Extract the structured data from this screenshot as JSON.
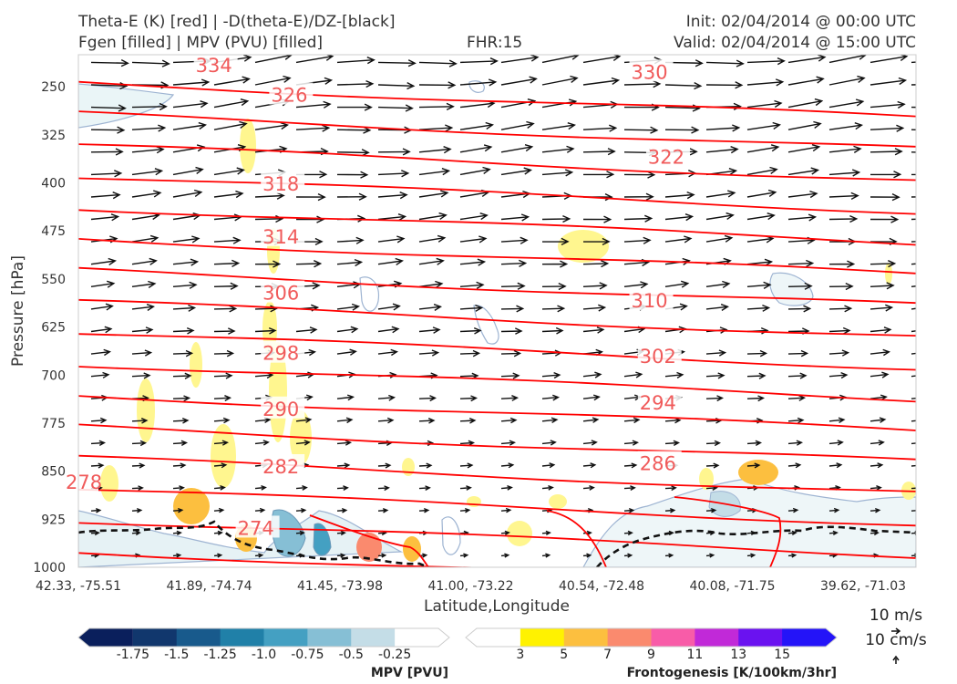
{
  "header": {
    "line1_left": "Theta-E (K) [red] | -D(theta-E)/DZ-[black]",
    "line2_left": "Fgen [filled] | MPV (PVU) [filled]",
    "fhr": "FHR:15",
    "init": "Init: 02/04/2014 @ 00:00 UTC",
    "valid": "Valid: 02/04/2014 @ 15:00 UTC"
  },
  "chart_data": {
    "type": "cross-section",
    "xlabel": "Latitude,Longitude",
    "ylabel": "Pressure [hPa]",
    "x_ticks": [
      "42.33, -75.51",
      "41.89, -74.74",
      "41.45, -73.98",
      "41.00, -73.22",
      "40.54, -72.48",
      "40.08, -71.75",
      "39.62, -71.03"
    ],
    "y_ticks": [
      250,
      325,
      400,
      475,
      550,
      625,
      700,
      775,
      850,
      925,
      1000
    ],
    "ylim": [
      200,
      1000
    ],
    "y_inverted": true,
    "theta_e_color": "#ff0000",
    "theta_e_labels": [
      {
        "value": 334,
        "x_frac": 0.14,
        "p": 216
      },
      {
        "value": 326,
        "x_frac": 0.23,
        "p": 262
      },
      {
        "value": 330,
        "x_frac": 0.66,
        "p": 226
      },
      {
        "value": 322,
        "x_frac": 0.68,
        "p": 359
      },
      {
        "value": 318,
        "x_frac": 0.22,
        "p": 401
      },
      {
        "value": 314,
        "x_frac": 0.22,
        "p": 483
      },
      {
        "value": 306,
        "x_frac": 0.22,
        "p": 571
      },
      {
        "value": 310,
        "x_frac": 0.66,
        "p": 583
      },
      {
        "value": 302,
        "x_frac": 0.67,
        "p": 670
      },
      {
        "value": 298,
        "x_frac": 0.22,
        "p": 665
      },
      {
        "value": 290,
        "x_frac": 0.22,
        "p": 752
      },
      {
        "value": 294,
        "x_frac": 0.67,
        "p": 742
      },
      {
        "value": 286,
        "x_frac": 0.67,
        "p": 837
      },
      {
        "value": 282,
        "x_frac": 0.22,
        "p": 842
      },
      {
        "value": 278,
        "x_frac": 0.0,
        "p": 866
      },
      {
        "value": 274,
        "x_frac": 0.19,
        "p": 938
      }
    ],
    "mpv_colorbar": {
      "label": "MPV [PVU]",
      "ticks": [
        "-1.75",
        "-1.5",
        "-1.25",
        "-1.0",
        "-0.75",
        "-0.5",
        "-0.25"
      ],
      "colors": [
        "#0a1f5c",
        "#11376d",
        "#185a8c",
        "#2080a8",
        "#44a0c2",
        "#86bfd5",
        "#c4dde7",
        "#ffffff"
      ]
    },
    "fgen_colorbar": {
      "label": "Frontogenesis [K/100km/3hr]",
      "ticks": [
        "3",
        "5",
        "7",
        "9",
        "11",
        "13",
        "15"
      ],
      "colors": [
        "#ffffff",
        "#fff200",
        "#fcbf3f",
        "#fa8a6e",
        "#f85ca8",
        "#c129d8",
        "#6a12f0",
        "#2414f8"
      ]
    },
    "wind_reference": {
      "horizontal": "10 m/s",
      "vertical": "10 cm/s"
    }
  }
}
